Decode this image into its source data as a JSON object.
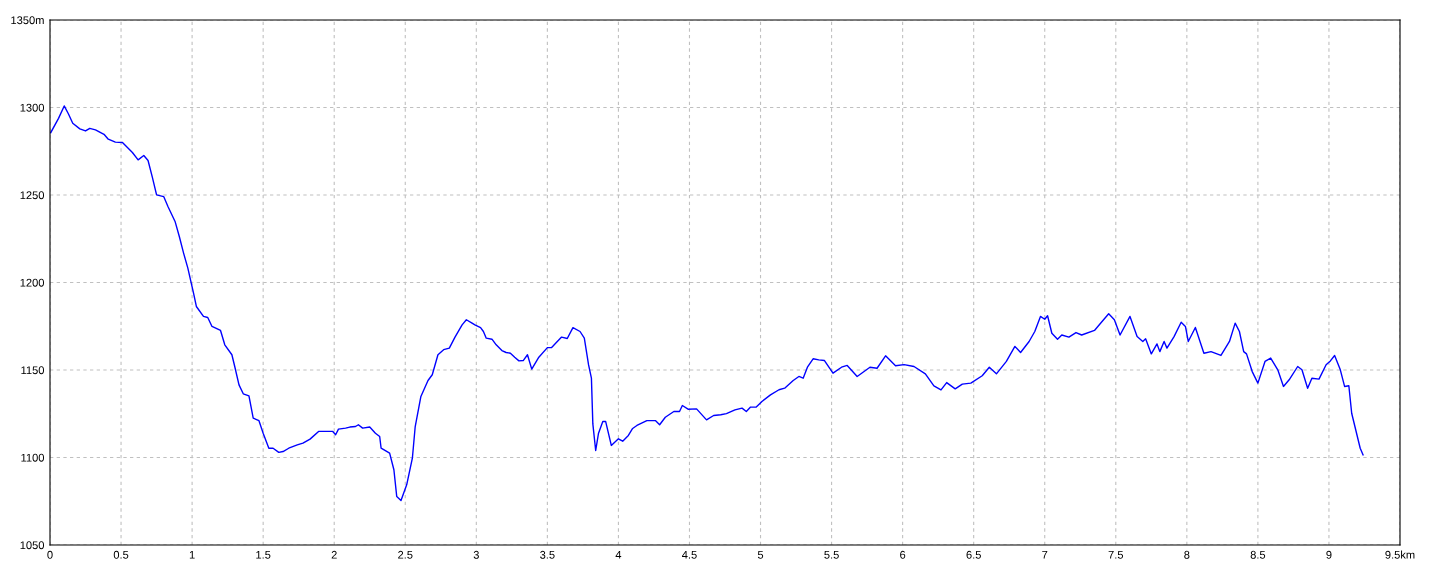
{
  "chart_data": {
    "type": "line",
    "line_style": "solid",
    "marker": "none",
    "grid": true,
    "legend": false,
    "xlim": [
      0,
      9.5
    ],
    "ylim": [
      1050,
      1350
    ],
    "xticks": [
      0,
      0.5,
      1,
      1.5,
      2,
      2.5,
      3,
      3.5,
      4,
      4.5,
      5,
      5.5,
      6,
      6.5,
      7,
      7.5,
      8,
      8.5,
      9,
      {
        "value": 9.5,
        "label": "9.5km"
      }
    ],
    "yticks": [
      1050,
      1100,
      1150,
      1200,
      1250,
      1300,
      {
        "value": 1350,
        "label": "1350m"
      }
    ],
    "series": [
      {
        "color": "#0000ff",
        "x": [
          0.005,
          0.06,
          0.1,
          0.13,
          0.16,
          0.21,
          0.25,
          0.28,
          0.32,
          0.38,
          0.41,
          0.46,
          0.51,
          0.58,
          0.62,
          0.66,
          0.69,
          0.72,
          0.75,
          0.8,
          0.83,
          0.88,
          0.91,
          0.94,
          0.97,
          1.01,
          1.03,
          1.08,
          1.11,
          1.14,
          1.2,
          1.23,
          1.28,
          1.3,
          1.33,
          1.36,
          1.4,
          1.43,
          1.47,
          1.5,
          1.54,
          1.57,
          1.61,
          1.64,
          1.68,
          1.74,
          1.78,
          1.83,
          1.89,
          1.92,
          1.99,
          2.01,
          2.03,
          2.08,
          2.11,
          2.15,
          2.17,
          2.2,
          2.25,
          2.29,
          2.32,
          2.33,
          2.39,
          2.42,
          2.44,
          2.47,
          2.51,
          2.55,
          2.57,
          2.61,
          2.66,
          2.69,
          2.73,
          2.77,
          2.81,
          2.85,
          2.9,
          2.93,
          2.97,
          2.99,
          3.03,
          3.05,
          3.07,
          3.11,
          3.14,
          3.18,
          3.21,
          3.24,
          3.27,
          3.3,
          3.33,
          3.36,
          3.39,
          3.44,
          3.5,
          3.53,
          3.6,
          3.64,
          3.68,
          3.73,
          3.76,
          3.79,
          3.81,
          3.82,
          3.84,
          3.86,
          3.89,
          3.91,
          3.95,
          4.0,
          4.03,
          4.07,
          4.1,
          4.13,
          4.2,
          4.26,
          4.29,
          4.33,
          4.39,
          4.43,
          4.45,
          4.49,
          4.55,
          4.62,
          4.67,
          4.72,
          4.76,
          4.82,
          4.87,
          4.9,
          4.93,
          4.97,
          5.01,
          5.07,
          5.13,
          5.17,
          5.23,
          5.27,
          5.3,
          5.33,
          5.37,
          5.41,
          5.45,
          5.51,
          5.57,
          5.61,
          5.68,
          5.77,
          5.82,
          5.88,
          5.95,
          6.01,
          6.08,
          6.16,
          6.22,
          6.27,
          6.31,
          6.37,
          6.42,
          6.48,
          6.56,
          6.61,
          6.66,
          6.73,
          6.79,
          6.83,
          6.89,
          6.93,
          6.97,
          7.0,
          7.02,
          7.05,
          7.09,
          7.12,
          7.17,
          7.22,
          7.26,
          7.35,
          7.39,
          7.45,
          7.49,
          7.53,
          7.6,
          7.65,
          7.69,
          7.71,
          7.75,
          7.79,
          7.81,
          7.84,
          7.86,
          7.91,
          7.96,
          7.99,
          8.01,
          8.06,
          8.12,
          8.17,
          8.24,
          8.3,
          8.34,
          8.37,
          8.4,
          8.42,
          8.46,
          8.5,
          8.55,
          8.59,
          8.64,
          8.68,
          8.72,
          8.78,
          8.81,
          8.85,
          8.88,
          8.93,
          8.98,
          9.01,
          9.04,
          9.08,
          9.11,
          9.14,
          9.16,
          9.22,
          9.24
        ],
        "values": [
          1285.6,
          1293.8,
          1300.9,
          1296.3,
          1291,
          1287.8,
          1286.6,
          1288.1,
          1287.2,
          1284.7,
          1281.9,
          1280.2,
          1280,
          1274.3,
          1270.1,
          1272.6,
          1269.7,
          1260.2,
          1250.1,
          1249.1,
          1243.4,
          1234.9,
          1226.3,
          1216.8,
          1208.2,
          1193.9,
          1186.3,
          1180.6,
          1180,
          1174.9,
          1172.6,
          1164.4,
          1158.7,
          1152,
          1141.5,
          1136.4,
          1135.2,
          1122.5,
          1121.1,
          1113.9,
          1105.3,
          1105.3,
          1102.9,
          1103.4,
          1105.3,
          1107.2,
          1108.2,
          1110.5,
          1114.9,
          1114.9,
          1114.9,
          1113,
          1116.2,
          1116.8,
          1117.4,
          1117.7,
          1118.7,
          1116.8,
          1117.4,
          1113.9,
          1112,
          1105.3,
          1102.5,
          1093,
          1077.7,
          1075.4,
          1084.4,
          1099.6,
          1117.7,
          1134.9,
          1144,
          1147.3,
          1158.7,
          1161.6,
          1162.5,
          1168.8,
          1175.8,
          1178.7,
          1176.8,
          1175.8,
          1174.2,
          1172,
          1168.2,
          1167.6,
          1164.4,
          1161.1,
          1160,
          1159.6,
          1157.3,
          1155.2,
          1155.4,
          1158.7,
          1150.5,
          1157.3,
          1162.8,
          1162.8,
          1168.8,
          1168,
          1174.2,
          1172,
          1168.2,
          1152.9,
          1145.3,
          1119.2,
          1104,
          1113.9,
          1120.6,
          1120.6,
          1106.9,
          1110.7,
          1109.3,
          1112.6,
          1116.6,
          1118.3,
          1121.1,
          1121.1,
          1118.7,
          1123,
          1126.3,
          1126.3,
          1129.7,
          1127.6,
          1127.8,
          1121.5,
          1124,
          1124.4,
          1125.1,
          1127.2,
          1128.2,
          1126.3,
          1128.8,
          1128.8,
          1132,
          1135.8,
          1138.7,
          1139.6,
          1144,
          1146.3,
          1145.3,
          1151.6,
          1156.4,
          1155.8,
          1155.4,
          1148.2,
          1151.6,
          1152.6,
          1146.3,
          1151.6,
          1151,
          1158.1,
          1152.4,
          1153.1,
          1152,
          1147.8,
          1140.9,
          1138.6,
          1142.8,
          1139.2,
          1141.9,
          1142.5,
          1146.7,
          1151.6,
          1147.8,
          1154.9,
          1163.5,
          1160,
          1166.3,
          1172,
          1180.6,
          1179,
          1181,
          1171,
          1167.6,
          1170,
          1168.8,
          1171.4,
          1170,
          1172.6,
          1176.4,
          1182.1,
          1178.7,
          1170,
          1180.6,
          1169.1,
          1166.3,
          1167.8,
          1159.2,
          1164.9,
          1160.5,
          1166.3,
          1162.5,
          1169.1,
          1177.3,
          1174.9,
          1166.3,
          1174.3,
          1159.6,
          1160.5,
          1158.3,
          1166.3,
          1176.8,
          1172,
          1160.5,
          1159.2,
          1149.1,
          1142.5,
          1154.9,
          1156.8,
          1150.1,
          1140.6,
          1144.4,
          1152,
          1150.1,
          1139.6,
          1145.3,
          1144.8,
          1153,
          1155.2,
          1158.3,
          1150.1,
          1140.6,
          1141,
          1125.3,
          1105.3,
          1101.5
        ]
      }
    ]
  }
}
